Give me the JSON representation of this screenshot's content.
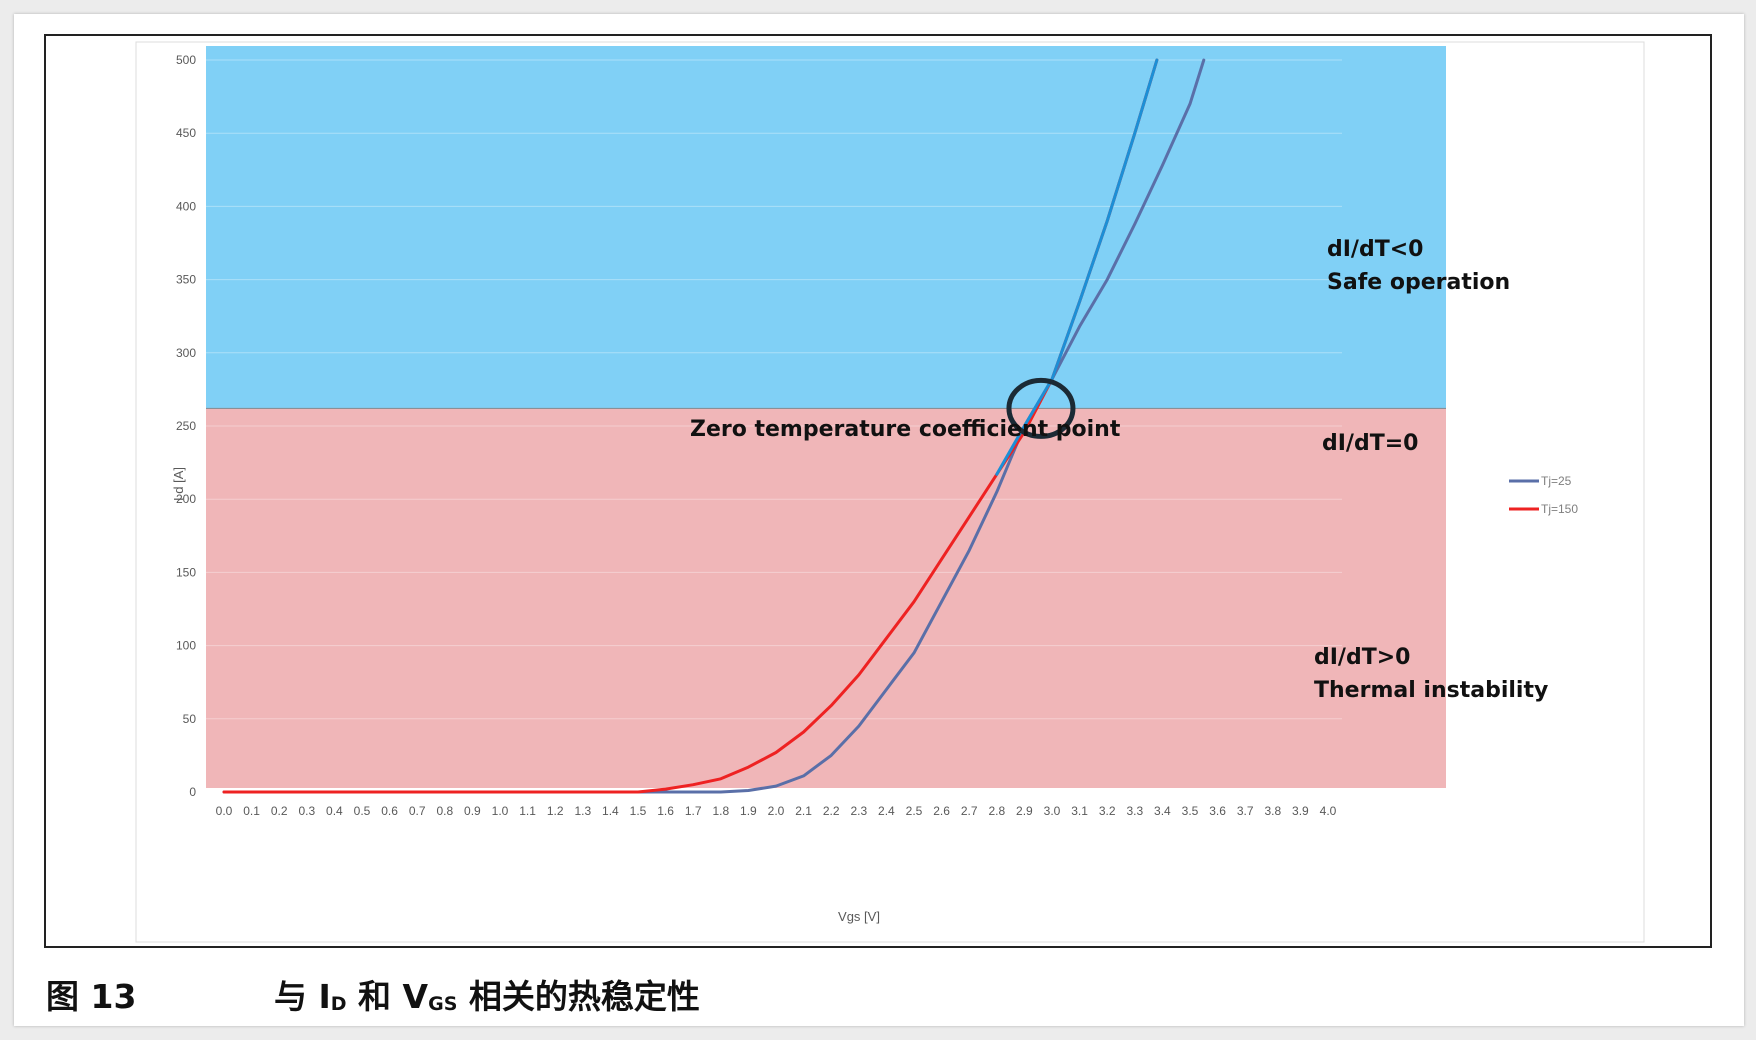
{
  "chart_data": {
    "type": "line",
    "title": "",
    "xlabel": "Vgs [V]",
    "ylabel": "I d [A]",
    "xlim": [
      0.0,
      4.0
    ],
    "ylim": [
      0,
      500
    ],
    "x_ticks": [
      "0.0",
      "0.1",
      "0.2",
      "0.3",
      "0.4",
      "0.5",
      "0.6",
      "0.7",
      "0.8",
      "0.9",
      "1.0",
      "1.1",
      "1.2",
      "1.3",
      "1.4",
      "1.5",
      "1.6",
      "1.7",
      "1.8",
      "1.9",
      "2.0",
      "2.1",
      "2.2",
      "2.3",
      "2.4",
      "2.5",
      "2.6",
      "2.7",
      "2.8",
      "2.9",
      "3.0",
      "3.1",
      "3.2",
      "3.3",
      "3.4",
      "3.5",
      "3.6",
      "3.7",
      "3.8",
      "3.9",
      "4.0"
    ],
    "y_ticks": [
      0,
      50,
      100,
      150,
      200,
      250,
      300,
      350,
      400,
      450,
      500
    ],
    "grid": true,
    "legend_position": "right",
    "series": [
      {
        "name": "Tj=25",
        "color": "#5a6fa8",
        "x": [
          0.0,
          1.6,
          1.7,
          1.8,
          1.9,
          2.0,
          2.1,
          2.2,
          2.3,
          2.4,
          2.5,
          2.6,
          2.7,
          2.8,
          2.9,
          3.0,
          3.1,
          3.2,
          3.3,
          3.4,
          3.5,
          3.55
        ],
        "y": [
          0,
          0,
          0,
          0,
          1,
          4,
          11,
          25,
          45,
          70,
          95,
          130,
          165,
          205,
          250,
          282,
          318,
          350,
          388,
          428,
          470,
          500
        ]
      },
      {
        "name": "Tj=150",
        "color": "#ee2222",
        "x": [
          0.0,
          1.5,
          1.6,
          1.7,
          1.8,
          1.9,
          2.0,
          2.1,
          2.2,
          2.3,
          2.4,
          2.5,
          2.6,
          2.7,
          2.8,
          2.9,
          3.0,
          3.1,
          3.2,
          3.3,
          3.38
        ],
        "y": [
          0,
          0,
          2,
          5,
          9,
          17,
          27,
          41,
          59,
          80,
          105,
          130,
          159,
          188,
          217,
          246,
          282,
          335,
          390,
          450,
          500
        ]
      },
      {
        "name": "",
        "role": "nominal curve",
        "color": "#1c8fd6",
        "x": [
          2.8,
          2.9,
          3.0,
          3.1,
          3.2,
          3.3,
          3.38
        ],
        "y": [
          217,
          250,
          282,
          335,
          390,
          450,
          500
        ]
      }
    ],
    "regions": [
      {
        "y_from": 262,
        "y_to": 500,
        "color": "#80d0f6"
      },
      {
        "y_from": 0,
        "y_to": 262,
        "color": "#f0b6b8"
      }
    ],
    "zero_temperature_coefficient_point": {
      "x": 2.96,
      "y": 262
    },
    "annotations": {
      "zero_point": "Zero temperature coefficient point",
      "safe_line1": "dI/dT<0",
      "safe_line2": "Safe operation",
      "equal": "dI/dT=0",
      "unstable_line1": "dI/dT>0",
      "unstable_line2": "Thermal instability"
    }
  },
  "caption": {
    "figure_number": "图 13",
    "title_pre": "与 I",
    "title_sub1": "D",
    "title_mid": " 和 V",
    "title_sub2": "GS",
    "title_post": " 相关的热稳定性"
  }
}
